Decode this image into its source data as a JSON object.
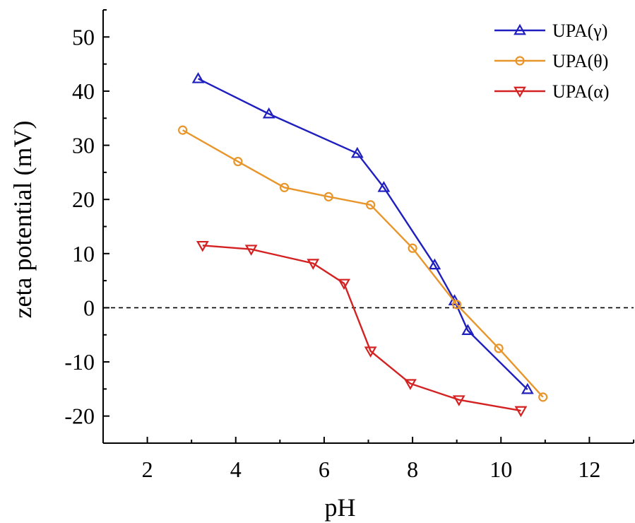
{
  "chart_data": {
    "type": "line",
    "xlabel": "pH",
    "ylabel": "zeta potential (mV)",
    "xlim": [
      1,
      13
    ],
    "ylim": [
      -25,
      55
    ],
    "x_ticks": [
      2,
      4,
      6,
      8,
      10,
      12
    ],
    "y_ticks": [
      -20,
      -10,
      0,
      10,
      20,
      30,
      40,
      50
    ],
    "x_tick_labels": [
      "2",
      "4",
      "6",
      "8",
      "10",
      "12"
    ],
    "y_tick_labels": [
      "-20",
      "-10",
      "0",
      "10",
      "20",
      "30",
      "40",
      "50"
    ],
    "reference_line": {
      "y": 0,
      "style": "dashed"
    },
    "legend_position": "top-right",
    "series": [
      {
        "name": "UPA(γ)",
        "color": "#1f1fbf",
        "marker": "triangle-up",
        "x": [
          3.15,
          4.75,
          6.75,
          7.35,
          8.5,
          8.95,
          9.25,
          10.6
        ],
        "y": [
          42.3,
          35.8,
          28.5,
          22.2,
          7.9,
          1.3,
          -4.2,
          -15.1
        ]
      },
      {
        "name": "UPA(θ)",
        "color": "#e8952a",
        "marker": "circle",
        "x": [
          2.8,
          4.05,
          5.1,
          6.1,
          7.05,
          8.0,
          9.0,
          9.95,
          10.95
        ],
        "y": [
          32.8,
          27.0,
          22.2,
          20.5,
          19.0,
          11.0,
          0.6,
          -7.5,
          -16.5
        ]
      },
      {
        "name": "UPA(α)",
        "color": "#d42222",
        "marker": "triangle-down",
        "x": [
          3.25,
          4.35,
          5.75,
          6.45,
          7.05,
          7.95,
          9.05,
          10.45
        ],
        "y": [
          11.5,
          10.8,
          8.2,
          4.5,
          -8.0,
          -14.0,
          -17.0,
          -19.0
        ]
      }
    ]
  }
}
